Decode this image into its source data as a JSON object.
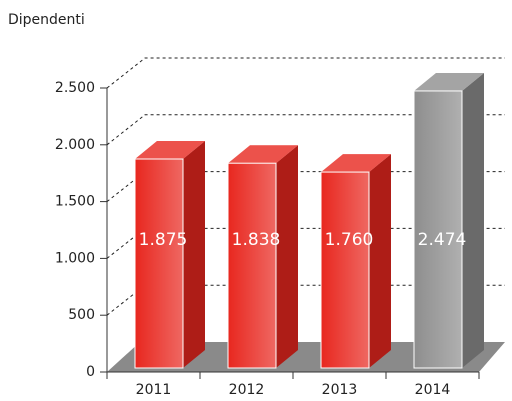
{
  "chart_data": {
    "type": "bar3d",
    "title": "Dipendenti",
    "categories": [
      "2011",
      "2012",
      "2013",
      "2014"
    ],
    "values": [
      1875,
      1838,
      1760,
      2474
    ],
    "value_labels": [
      "1.875",
      "1.838",
      "1.760",
      "2.474"
    ],
    "colors": [
      "#e8271f",
      "#e8271f",
      "#e8271f",
      "#8e8e8e"
    ],
    "ylim": [
      0,
      2500
    ],
    "yticks": [
      0,
      500,
      {
        "value": 1000,
        "label": "1.000"
      },
      {
        "value": 1500,
        "label": "1.500"
      },
      {
        "value": 2000,
        "label": "2.000"
      },
      {
        "value": 2500,
        "label": "2.500"
      }
    ],
    "grid": true
  }
}
